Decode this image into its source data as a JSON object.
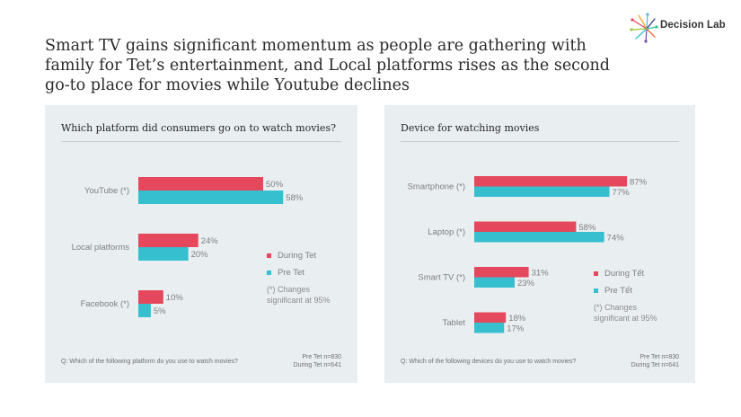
{
  "headline": "Smart TV gains significant momentum as people are gathering with family for Tet’s entertainment, and Local platforms rises as the second go-to place for movies while Youtube declines",
  "logo": {
    "text": "Decision Lab"
  },
  "colors": {
    "during": "#e5485c",
    "pre": "#35bfcf",
    "panel": "#e9eef1"
  },
  "panels": [
    {
      "title": "Which platform did consumers go on to watch movies?",
      "legend": {
        "during": "During Tet",
        "pre": "Pre Tet"
      },
      "note": "(*) Changes significant at 95%",
      "question": "Q: Which of the following platform do you use to watch movies?",
      "sample_pre": "Pre Tet n=830",
      "sample_during": "During Tet n=641"
    },
    {
      "title": "Device for watching movies",
      "legend": {
        "during": "During Tết",
        "pre": "Pre Tết"
      },
      "note": "(*) Changes significant at 95%",
      "question": "Q: Which of the following devices do you use to watch movies?",
      "sample_pre": "Pre Tet n=830",
      "sample_during": "During Tet n=641"
    }
  ],
  "chart_data": [
    {
      "type": "bar",
      "orientation": "horizontal",
      "title": "Which platform did consumers go on to watch movies?",
      "categories": [
        "YouTube (*)",
        "Local platforms",
        "Facebook (*)"
      ],
      "series": [
        {
          "name": "During Tet",
          "values": [
            50,
            24,
            10
          ],
          "labels": [
            "50%",
            "24%",
            "10%"
          ]
        },
        {
          "name": "Pre Tet",
          "values": [
            58,
            20,
            5
          ],
          "labels": [
            "58%",
            "20%",
            "5%"
          ]
        }
      ],
      "xlim": [
        0,
        100
      ],
      "grid": false,
      "legend_position": "right"
    },
    {
      "type": "bar",
      "orientation": "horizontal",
      "title": "Device for watching movies",
      "categories": [
        "Smartphone (*)",
        "Laptop (*)",
        "Smart TV (*)",
        "Tablet"
      ],
      "series": [
        {
          "name": "During Tết",
          "values": [
            87,
            58,
            31,
            18
          ],
          "labels": [
            "87%",
            "58%",
            "31%",
            "18%"
          ]
        },
        {
          "name": "Pre Tết",
          "values": [
            77,
            74,
            23,
            17
          ],
          "labels": [
            "77%",
            "74%",
            "23%",
            "17%"
          ]
        }
      ],
      "xlim": [
        0,
        100
      ],
      "grid": false,
      "legend_position": "right"
    }
  ]
}
